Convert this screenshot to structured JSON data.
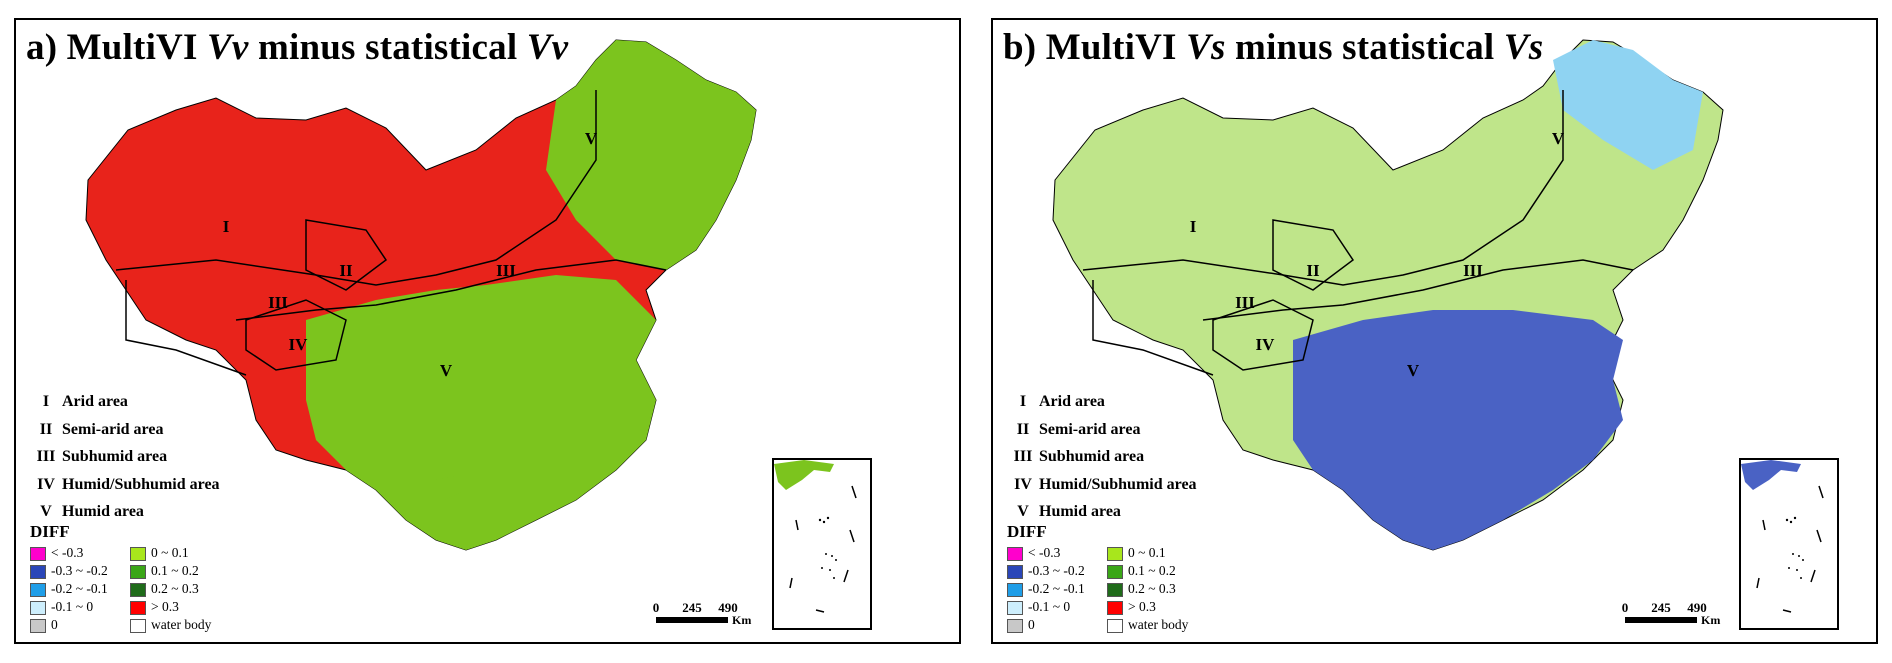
{
  "panels": [
    {
      "id": "a",
      "title_prefix": "a) MultiVI ",
      "title_var1": "Vv",
      "title_mid": " minus statistical ",
      "title_var2": "Vv",
      "map_fill": "#e8231b",
      "south_fill": "#7cc41e",
      "region_labels": [
        "I",
        "II",
        "III",
        "IV",
        "V",
        "III",
        "V"
      ]
    },
    {
      "id": "b",
      "title_prefix": "b) MultiVI ",
      "title_var1": "Vs",
      "title_mid": " minus statistical ",
      "title_var2": "Vs",
      "map_fill": "#bfe58a",
      "south_fill": "#4a62c4",
      "region_labels": [
        "I",
        "II",
        "III",
        "IV",
        "V",
        "III",
        "V"
      ]
    }
  ],
  "regions_legend": [
    {
      "num": "I",
      "label": "Arid area"
    },
    {
      "num": "II",
      "label": "Semi-arid area"
    },
    {
      "num": "III",
      "label": "Subhumid area"
    },
    {
      "num": "IV",
      "label": "Humid/Subhumid area"
    },
    {
      "num": "V",
      "label": "Humid area"
    }
  ],
  "diff_title": "DIFF",
  "diff_legend_left": [
    {
      "label": "< -0.3",
      "color": "#ff00cc"
    },
    {
      "label": "-0.3 ~ -0.2",
      "color": "#2a46b8"
    },
    {
      "label": "-0.2 ~ -0.1",
      "color": "#1f9ee8"
    },
    {
      "label": "-0.1 ~ 0",
      "color": "#cdeefc"
    },
    {
      "label": "0",
      "color": "#c8c8c8"
    }
  ],
  "diff_legend_right": [
    {
      "label": "0 ~ 0.1",
      "color": "#a8e61c"
    },
    {
      "label": "0.1 ~ 0.2",
      "color": "#3aa617"
    },
    {
      "label": "0.2 ~ 0.3",
      "color": "#1f6b1a"
    },
    {
      "label": "> 0.3",
      "color": "#ff0000"
    },
    {
      "label": "water body",
      "color": "#ffffff"
    }
  ],
  "scale": {
    "ticks": [
      "0",
      "245",
      "490"
    ],
    "unit": "Km"
  }
}
